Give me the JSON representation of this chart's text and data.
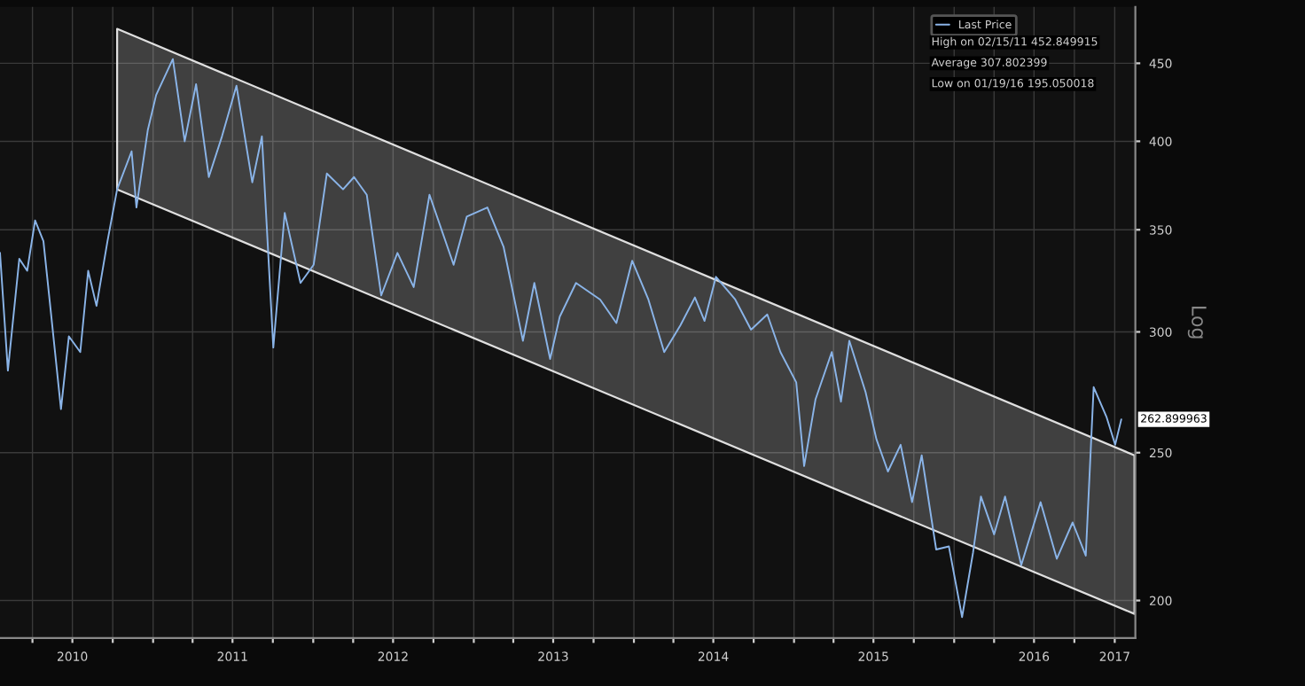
{
  "chart_data": {
    "type": "line",
    "ylabel": "Log",
    "annotations": [
      "High on 02/15/11 452.849915",
      "Average 307.802399",
      "Low on 01/19/16 195.050018"
    ],
    "xlim": [
      "2010-01-17",
      "2017-02-17"
    ],
    "ylim": [
      189,
      490
    ],
    "log": true,
    "yticks": [
      200,
      250,
      300,
      350,
      400,
      450
    ],
    "xticks": [
      {
        "value": "2010-04-01",
        "label": null
      },
      {
        "value": "2010-07-01",
        "label": "2010"
      },
      {
        "value": "2010-10-01",
        "label": null
      },
      {
        "value": "2011-01-01",
        "label": null
      },
      {
        "value": "2011-04-01",
        "label": null
      },
      {
        "value": "2011-07-01",
        "label": "2011"
      },
      {
        "value": "2011-10-01",
        "label": null
      },
      {
        "value": "2012-01-01",
        "label": null
      },
      {
        "value": "2012-04-01",
        "label": null
      },
      {
        "value": "2012-07-01",
        "label": "2012"
      },
      {
        "value": "2012-10-01",
        "label": null
      },
      {
        "value": "2013-01-01",
        "label": null
      },
      {
        "value": "2013-04-01",
        "label": null
      },
      {
        "value": "2013-07-01",
        "label": "2013"
      },
      {
        "value": "2013-10-01",
        "label": null
      },
      {
        "value": "2014-01-01",
        "label": null
      },
      {
        "value": "2014-04-01",
        "label": null
      },
      {
        "value": "2014-07-01",
        "label": "2014"
      },
      {
        "value": "2014-10-01",
        "label": null
      },
      {
        "value": "2015-01-01",
        "label": null
      },
      {
        "value": "2015-04-01",
        "label": null
      },
      {
        "value": "2015-07-01",
        "label": "2015"
      },
      {
        "value": "2015-10-01",
        "label": null
      },
      {
        "value": "2016-01-01",
        "label": null
      },
      {
        "value": "2016-04-01",
        "label": null
      },
      {
        "value": "2016-07-01",
        "label": "2016"
      },
      {
        "value": "2016-10-01",
        "label": null
      },
      {
        "value": "2017-01-01",
        "label": "2017"
      }
    ],
    "grid": true,
    "legend": "top right",
    "series": [
      {
        "color": "#ffffff",
        "x": [
          "2010-10-11",
          "2017-02-15"
        ],
        "values": [
          null,
          null
        ],
        "lower": [
          372,
          196
        ],
        "upper": [
          474,
          249
        ]
      },
      {
        "name": "Last Price",
        "color": "#8ab4e8",
        "x": [
          "2010-01-17",
          "2010-02-04",
          "2010-03-02",
          "2010-03-20",
          "2010-04-07",
          "2010-04-26",
          "2010-05-14",
          "2010-06-05",
          "2010-06-23",
          "2010-07-19",
          "2010-08-06",
          "2010-08-25",
          "2010-09-19",
          "2010-10-11",
          "2010-11-13",
          "2010-11-24",
          "2010-12-20",
          "2011-01-08",
          "2011-02-15",
          "2011-03-14",
          "2011-04-09",
          "2011-05-08",
          "2011-06-07",
          "2011-07-10",
          "2011-08-15",
          "2011-09-06",
          "2011-10-02",
          "2011-10-28",
          "2011-12-03",
          "2012-01-02",
          "2012-02-01",
          "2012-03-09",
          "2012-04-03",
          "2012-05-02",
          "2012-06-04",
          "2012-07-11",
          "2012-08-17",
          "2012-09-22",
          "2012-11-16",
          "2012-12-16",
          "2013-02-01",
          "2013-03-10",
          "2013-04-23",
          "2013-05-19",
          "2013-06-24",
          "2013-07-16",
          "2013-08-22",
          "2013-10-16",
          "2013-11-22",
          "2013-12-28",
          "2014-02-03",
          "2014-03-11",
          "2014-04-17",
          "2014-05-20",
          "2014-06-11",
          "2014-07-07",
          "2014-08-20",
          "2014-09-25",
          "2014-11-01",
          "2014-12-01",
          "2015-01-06",
          "2015-01-24",
          "2015-02-19",
          "2015-03-28",
          "2015-04-18",
          "2015-05-07",
          "2015-06-13",
          "2015-07-08",
          "2015-08-03",
          "2015-09-01",
          "2015-09-27",
          "2015-10-19",
          "2015-11-21",
          "2015-12-20",
          "2016-01-19",
          "2016-02-13",
          "2016-03-02",
          "2016-04-01",
          "2016-04-26",
          "2016-06-02",
          "2016-07-16",
          "2016-08-22",
          "2016-09-27",
          "2016-10-27",
          "2016-11-14",
          "2016-12-13",
          "2017-01-02",
          "2017-01-16"
        ],
        "values": [
          338,
          283,
          335,
          329,
          355,
          344,
          307,
          267,
          298,
          291,
          329,
          312,
          344,
          372,
          394,
          362,
          407,
          429,
          452.85,
          400,
          436,
          379,
          403,
          435,
          376,
          403,
          293,
          359,
          323,
          332,
          381,
          372,
          379,
          369,
          317,
          338,
          321,
          369,
          332,
          357,
          362,
          341,
          296,
          323,
          288,
          307,
          323,
          315,
          304,
          334,
          315,
          291,
          303,
          316,
          305,
          326,
          315,
          301,
          308,
          291,
          278,
          245,
          271,
          291,
          270,
          296,
          274,
          255,
          243,
          253,
          232,
          249,
          216,
          217,
          195.05,
          215,
          234,
          221,
          234,
          211,
          232,
          213,
          225,
          214,
          276,
          264,
          253,
          262.899963
        ],
        "value_labels": [
          null,
          null,
          null,
          null,
          null,
          null,
          null,
          null,
          null,
          null,
          null,
          null,
          null,
          null,
          null,
          null,
          null,
          null,
          null,
          null,
          null,
          null,
          null,
          null,
          null,
          null,
          null,
          null,
          null,
          null,
          null,
          null,
          null,
          null,
          null,
          null,
          null,
          null,
          null,
          null,
          null,
          null,
          null,
          null,
          null,
          null,
          null,
          null,
          null,
          null,
          null,
          null,
          null,
          null,
          null,
          null,
          null,
          null,
          null,
          null,
          null,
          null,
          null,
          null,
          null,
          null,
          null,
          null,
          null,
          null,
          null,
          null,
          null,
          null,
          null,
          null,
          null,
          null,
          null,
          null,
          null,
          null,
          null,
          null,
          null,
          null,
          null,
          "262.899963"
        ]
      }
    ]
  }
}
